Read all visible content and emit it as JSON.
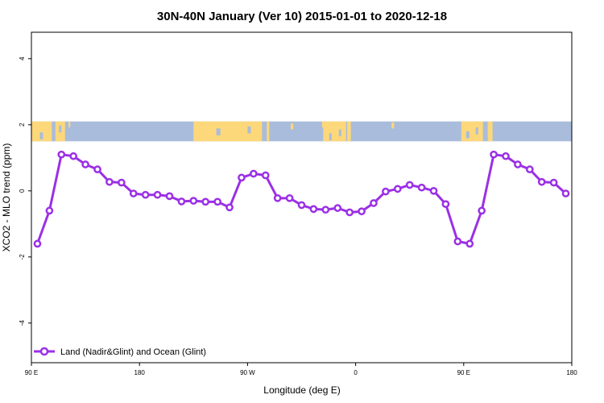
{
  "chart_data": {
    "type": "line",
    "title": "30N-40N January (Ver 10)   2015-01-01 to 2020-12-18",
    "xlabel": "Longitude (deg E)",
    "ylabel": "XCO2 - MLO trend (ppm)",
    "x_ticks": [
      {
        "value": 90,
        "label": "90 E"
      },
      {
        "value": 180,
        "label": "180"
      },
      {
        "value": 270,
        "label": "90 W"
      },
      {
        "value": 360,
        "label": "0"
      },
      {
        "value": 450,
        "label": "90 E"
      },
      {
        "value": 540,
        "label": "180"
      }
    ],
    "y_ticks": [
      -4,
      -2,
      0,
      2,
      4
    ],
    "xlim": [
      90,
      540
    ],
    "ylim": [
      -5.2,
      4.8
    ],
    "grid": false,
    "legend": {
      "position": "bottom-left"
    },
    "map_strip": {
      "y_range": [
        1.5,
        2.1
      ],
      "land_color": "#fdd87a",
      "ocean_color": "#a9bcdb"
    },
    "series": [
      {
        "name": "Land (Nadir&Glint) and Ocean (Glint)",
        "color": "#9b30e6",
        "x": [
          95,
          105,
          115,
          125,
          135,
          145,
          155,
          165,
          175,
          185,
          195,
          205,
          215,
          225,
          235,
          245,
          255,
          265,
          275,
          285,
          295,
          305,
          315,
          325,
          335,
          345,
          355,
          365,
          375,
          385,
          395,
          405,
          415,
          425,
          435,
          445,
          455,
          465,
          475,
          485,
          495,
          505,
          515,
          525,
          535
        ],
        "y": [
          -1.6,
          -0.6,
          1.1,
          1.05,
          0.8,
          0.65,
          0.27,
          0.25,
          -0.08,
          -0.12,
          -0.12,
          -0.16,
          -0.32,
          -0.3,
          -0.33,
          -0.33,
          -0.5,
          0.4,
          0.52,
          0.47,
          -0.22,
          -0.22,
          -0.43,
          -0.55,
          -0.57,
          -0.52,
          -0.65,
          -0.62,
          -0.37,
          -0.02,
          0.06,
          0.18,
          0.1,
          0.0,
          -0.4,
          -1.53,
          -1.6,
          -0.6,
          1.1,
          1.05,
          0.8,
          0.65,
          0.27,
          0.25,
          -0.08
        ]
      }
    ]
  }
}
